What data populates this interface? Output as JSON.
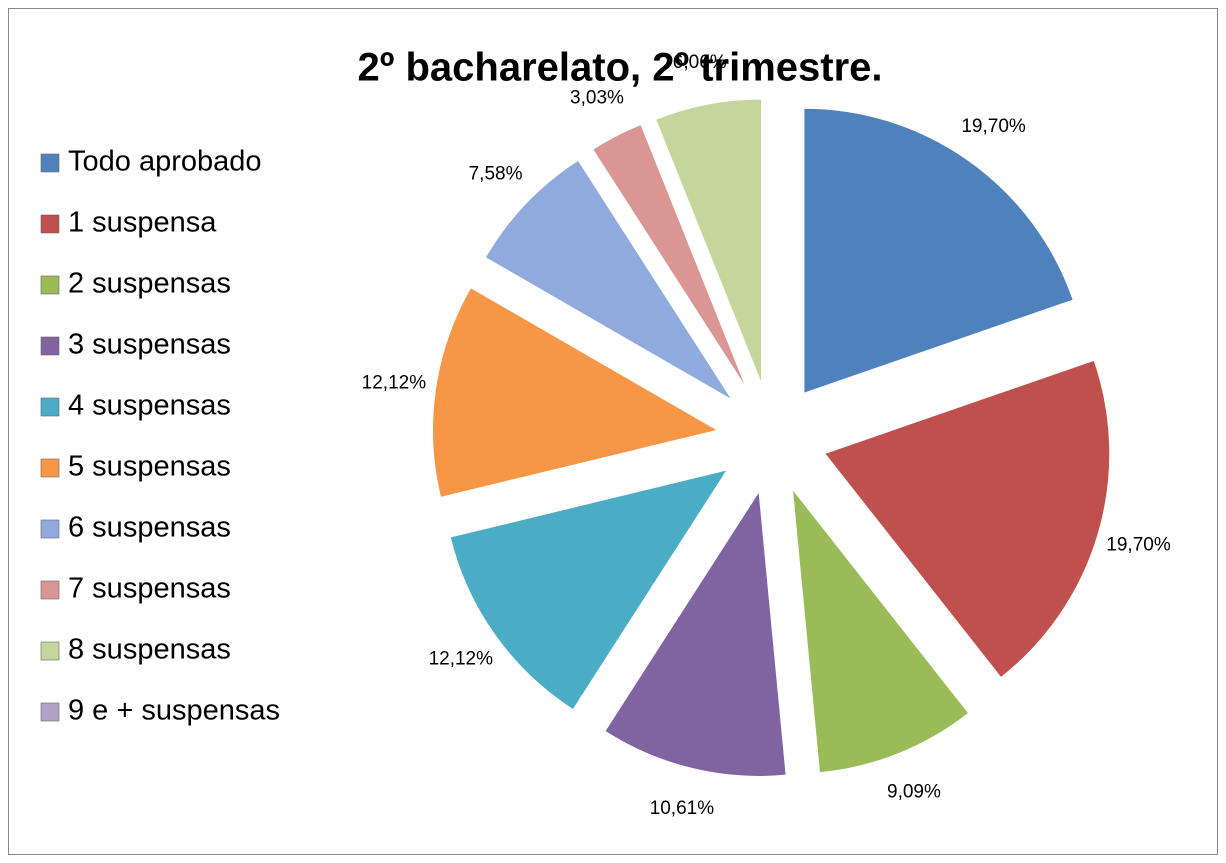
{
  "chart_data": {
    "type": "pie",
    "title": "2º bacharelato, 2º trimestre.",
    "categories": [
      "Todo aprobado",
      "1 suspensa",
      "2 suspensas",
      "3 suspensas",
      "4 suspensas",
      "5 suspensas",
      "6 suspensas",
      "7 suspensas",
      "8 suspensas",
      "9 e + suspensas"
    ],
    "values": [
      19.7,
      19.7,
      9.09,
      10.61,
      12.12,
      12.12,
      7.58,
      3.03,
      6.06,
      0
    ],
    "value_labels": [
      "19,70%",
      "19,70%",
      "9,09%",
      "10,61%",
      "12,12%",
      "12,12%",
      "7,58%",
      "3,03%",
      "6,06%",
      null
    ],
    "colors": [
      "#4f81bd",
      "#c0504d",
      "#9bbb59",
      "#8064a2",
      "#4bacc6",
      "#f79646",
      "#8faadc",
      "#d99694",
      "#c3d69b",
      "#b3a2c7"
    ],
    "legend": "left",
    "exploded": true
  }
}
